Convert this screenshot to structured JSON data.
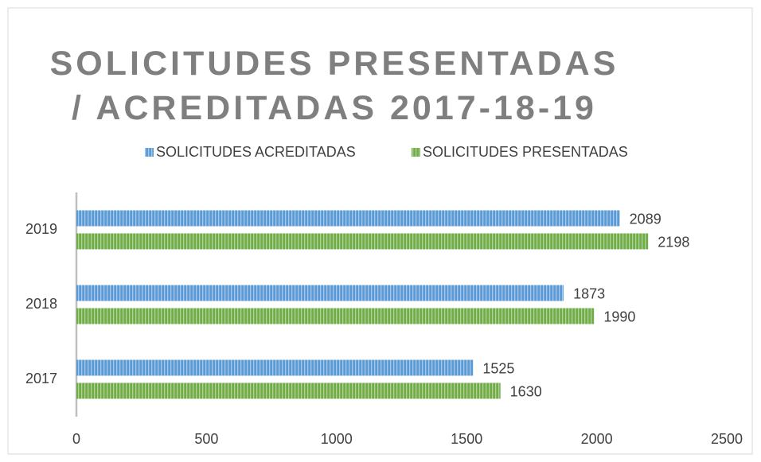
{
  "chart_data": {
    "type": "bar",
    "orientation": "horizontal",
    "title": "SOLICITUDES PRESENTADAS / ACREDITADAS 2017-18-19",
    "categories": [
      "2017",
      "2018",
      "2019"
    ],
    "series": [
      {
        "name": "SOLICITUDES ACREDITADAS",
        "color": "#5b9bd5",
        "values": [
          1525,
          1873,
          2089
        ]
      },
      {
        "name": "SOLICITUDES PRESENTADAS",
        "color": "#70ad47",
        "values": [
          1630,
          1990,
          2198
        ]
      }
    ],
    "xlim": [
      0,
      2500
    ],
    "xticks": [
      0,
      500,
      1000,
      1500,
      2000,
      2500
    ],
    "legend": "top",
    "grid": false
  }
}
